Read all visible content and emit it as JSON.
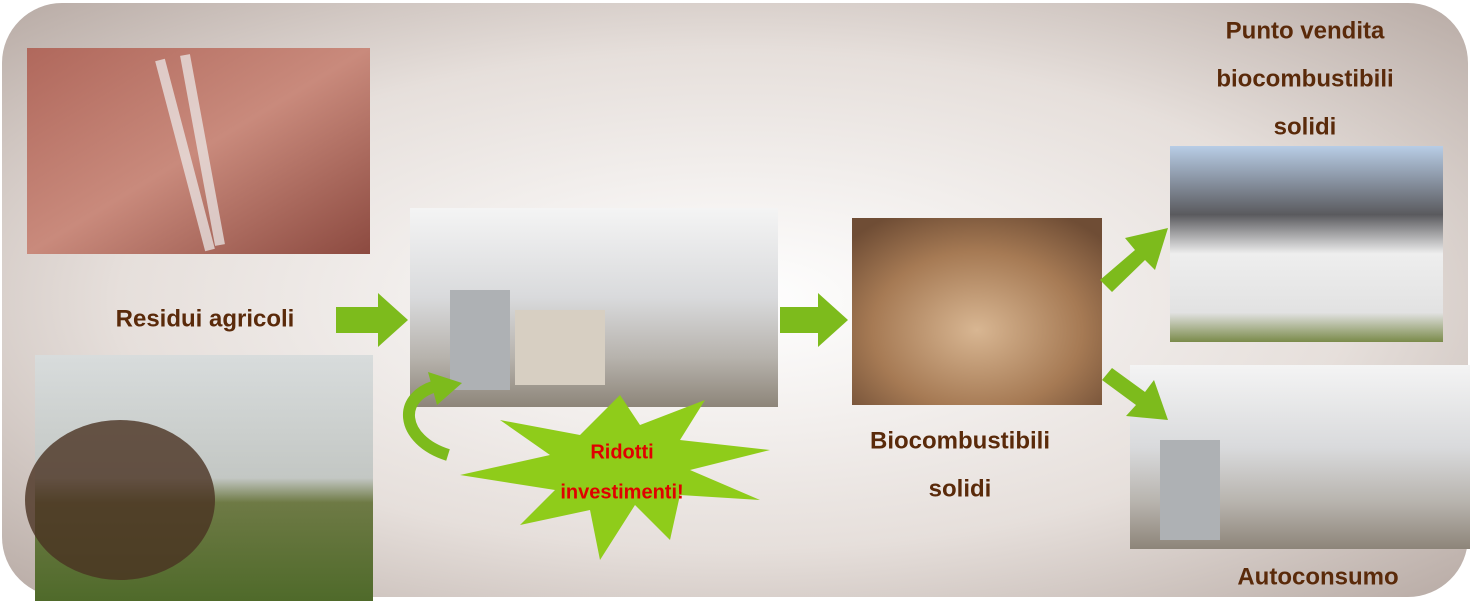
{
  "labels": {
    "residui": "Residui agricoli",
    "ridotti": [
      "Ridotti",
      "investimenti!"
    ],
    "biocombustibili": [
      "Biocombustibili",
      "solidi"
    ],
    "punto_vendita": [
      "Punto vendita",
      "biocombustibili",
      "solidi"
    ],
    "autoconsumo": "Autoconsumo"
  }
}
